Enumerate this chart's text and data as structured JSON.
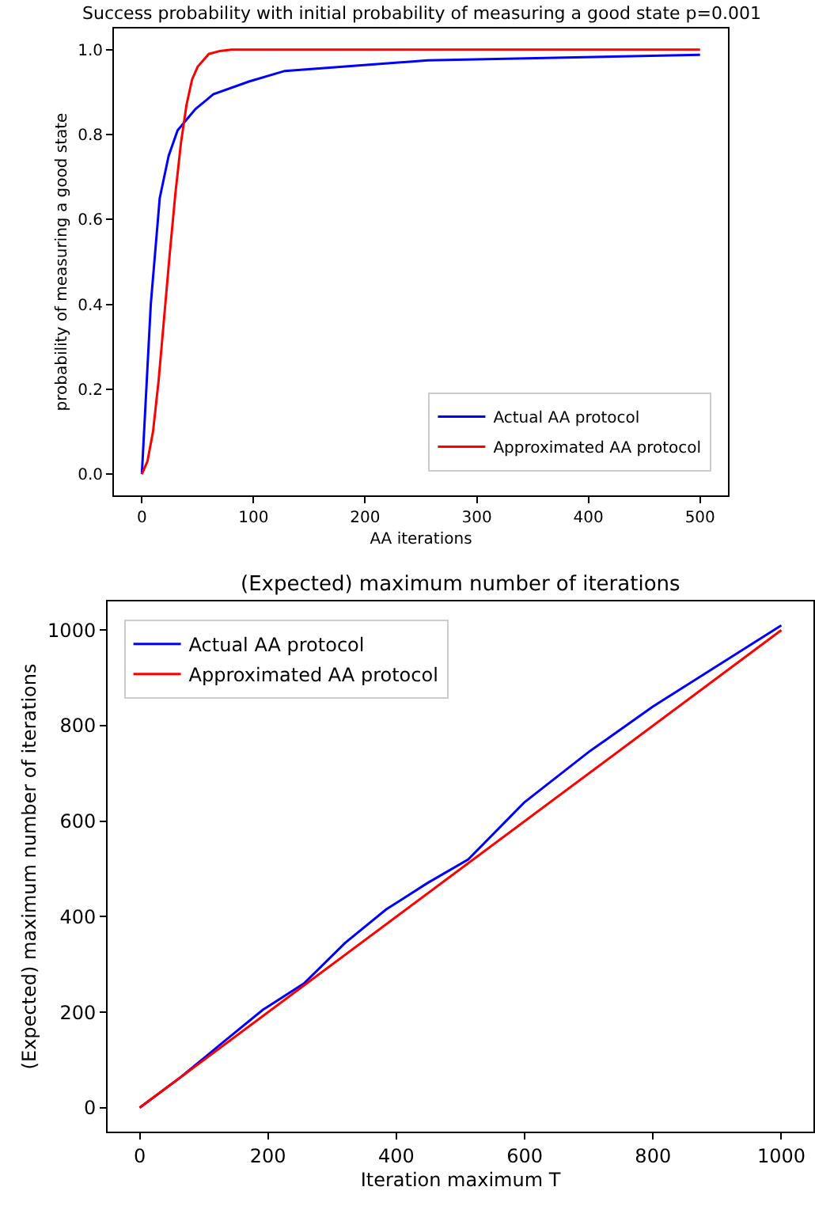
{
  "chart_data": [
    {
      "type": "line",
      "title": "Success probability with initial probability of measuring a good state p=0.001",
      "xlabel": "AA iterations",
      "ylabel": "probability of measuring a good state",
      "series": [
        {
          "name": "Actual AA protocol",
          "color": "#0000ff",
          "x": [
            0,
            2,
            4,
            8,
            16,
            24,
            32,
            48,
            64,
            96,
            128,
            256,
            500
          ],
          "values": [
            0,
            0.1,
            0.2,
            0.4,
            0.65,
            0.75,
            0.81,
            0.86,
            0.895,
            0.925,
            0.95,
            0.975,
            0.988
          ]
        },
        {
          "name": "Approximated AA protocol",
          "color": "#ff0000",
          "x": [
            0,
            5,
            10,
            15,
            20,
            25,
            30,
            35,
            40,
            45,
            50,
            60,
            70,
            80,
            500
          ],
          "values": [
            0,
            0.03,
            0.1,
            0.22,
            0.37,
            0.52,
            0.66,
            0.78,
            0.87,
            0.93,
            0.96,
            0.99,
            0.997,
            1.0,
            1.0
          ]
        }
      ],
      "xlim": [
        -25,
        525
      ],
      "ylim": [
        -0.05,
        1.05
      ],
      "xticks": [
        0,
        100,
        200,
        300,
        400,
        500
      ],
      "yticks": [
        {
          "value": 0,
          "label": "0.0"
        },
        {
          "value": 0.2,
          "label": "0.2"
        },
        {
          "value": 0.4,
          "label": "0.4"
        },
        {
          "value": 0.6,
          "label": "0.6"
        },
        {
          "value": 0.8,
          "label": "0.8"
        },
        {
          "value": 1,
          "label": "1.0"
        }
      ],
      "legend": "bottom right"
    },
    {
      "type": "line",
      "title": "(Expected) maximum number of iterations",
      "xlabel": "Iteration maximum T",
      "ylabel": "(Expected) maximum number of iterations",
      "series": [
        {
          "name": "Actual AA protocol",
          "color": "#0000ff",
          "x": [
            0,
            64,
            128,
            192,
            256,
            320,
            384,
            448,
            512,
            600,
            700,
            800,
            900,
            1000
          ],
          "values": [
            0,
            64,
            135,
            205,
            260,
            345,
            415,
            470,
            520,
            640,
            745,
            840,
            925,
            1010
          ]
        },
        {
          "name": "Approximated AA protocol",
          "color": "#ff0000",
          "x": [
            0,
            1000
          ],
          "values": [
            0,
            1000
          ]
        }
      ],
      "xlim": [
        -50,
        1050
      ],
      "ylim": [
        -50,
        1060
      ],
      "xticks": [
        0,
        200,
        400,
        600,
        800,
        1000
      ],
      "yticks": [
        0,
        200,
        400,
        600,
        800,
        1000
      ],
      "legend": "top left"
    }
  ]
}
